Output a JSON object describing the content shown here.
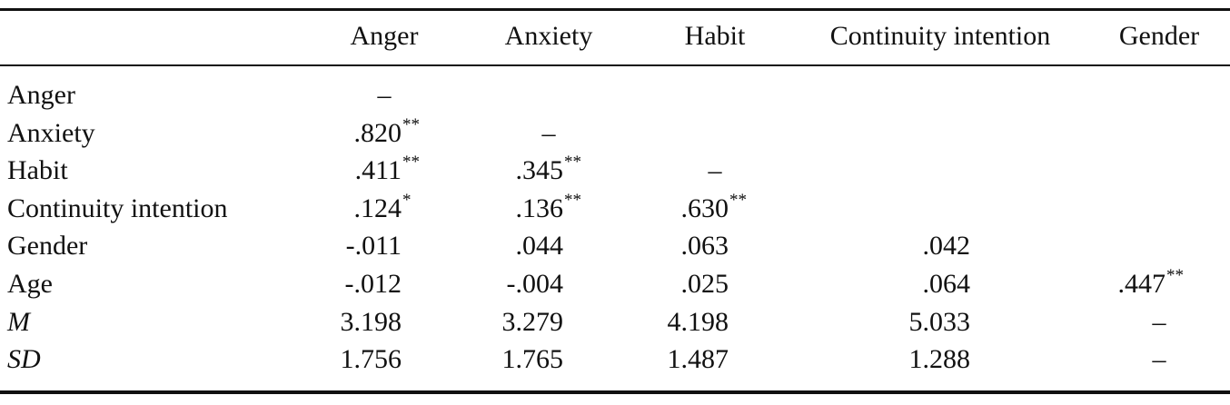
{
  "table": {
    "header": [
      "Anger",
      "Anxiety",
      "Habit",
      "Continuity intention",
      "Gender"
    ],
    "rows": [
      {
        "label": "Anger",
        "cells": [
          {
            "text": "–"
          },
          null,
          null,
          null,
          null
        ]
      },
      {
        "label": "Anxiety",
        "cells": [
          {
            "text": ".820",
            "sig": "**"
          },
          {
            "text": "–"
          },
          null,
          null,
          null
        ]
      },
      {
        "label": "Habit",
        "cells": [
          {
            "text": ".411",
            "sig": "**"
          },
          {
            "text": ".345",
            "sig": "**"
          },
          {
            "text": "–"
          },
          null,
          null
        ]
      },
      {
        "label": "Continuity intention",
        "cells": [
          {
            "text": ".124",
            "sig": "*"
          },
          {
            "text": ".136",
            "sig": "**"
          },
          {
            "text": ".630",
            "sig": "**"
          },
          null,
          null
        ]
      },
      {
        "label": "Gender",
        "cells": [
          {
            "text": "-.011"
          },
          {
            "text": ".044"
          },
          {
            "text": ".063"
          },
          {
            "text": ".042"
          },
          null
        ]
      },
      {
        "label": "Age",
        "cells": [
          {
            "text": "-.012"
          },
          {
            "text": "-.004"
          },
          {
            "text": ".025"
          },
          {
            "text": ".064"
          },
          {
            "text": ".447",
            "sig": "**"
          }
        ]
      },
      {
        "label": "M",
        "cells": [
          {
            "text": "3.198"
          },
          {
            "text": "3.279"
          },
          {
            "text": "4.198"
          },
          {
            "text": "5.033"
          },
          {
            "text": "–"
          }
        ]
      },
      {
        "label": "SD",
        "cells": [
          {
            "text": "1.756"
          },
          {
            "text": "1.765"
          },
          {
            "text": "1.487"
          },
          {
            "text": "1.288"
          },
          {
            "text": "–"
          }
        ]
      }
    ]
  }
}
